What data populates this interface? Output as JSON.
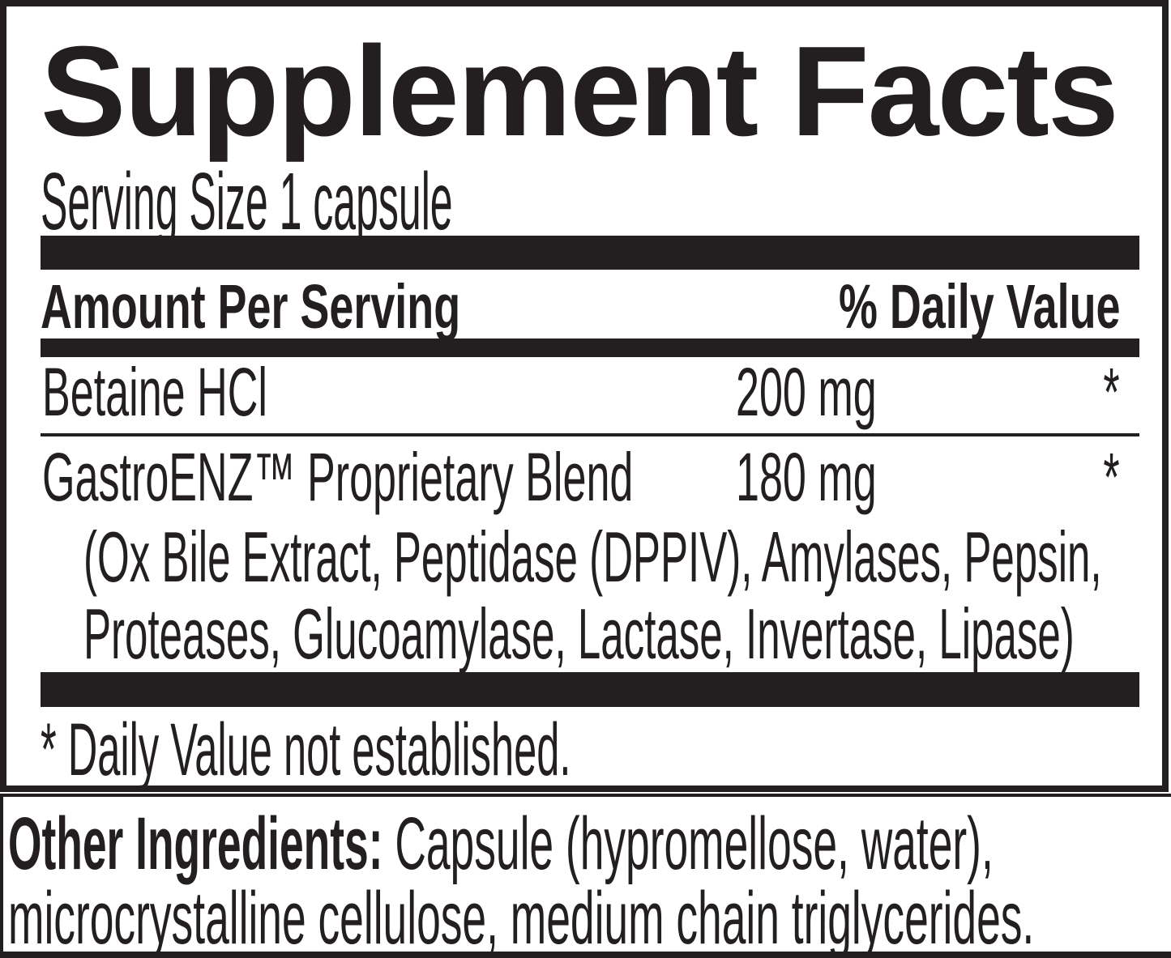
{
  "colors": {
    "ink": "#231f20",
    "paper": "#ffffff"
  },
  "supplement_facts": {
    "title": "Supplement Facts",
    "serving_size": "Serving Size 1 capsule",
    "header": {
      "amount_per_serving": "Amount Per Serving",
      "percent_daily_value": "% Daily Value"
    },
    "rows": [
      {
        "name": "Betaine HCl",
        "amount": "200 mg",
        "daily_value": "*"
      },
      {
        "name": "GastroENZ™ Proprietary Blend",
        "amount": "180 mg",
        "daily_value": "*",
        "blend_lines": [
          "(Ox Bile Extract, Peptidase (DPPIV), Amylases, Pepsin,",
          "Proteases, Glucoamylase, Lactase, Invertase, Lipase)"
        ]
      }
    ],
    "footnote": "* Daily Value not established."
  },
  "other_ingredients": {
    "label": "Other Ingredients:",
    "line1_rest": " Capsule (hypromellose, water),",
    "line2": "microcrystalline cellulose, medium chain triglycerides."
  }
}
